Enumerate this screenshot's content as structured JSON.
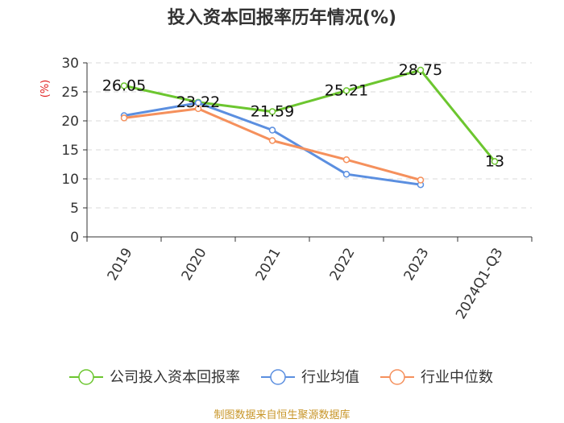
{
  "chart_data": {
    "type": "line",
    "title": "投入资本回报率历年情况(%)",
    "ylabel": "(%)",
    "categories": [
      "2019",
      "2020",
      "2021",
      "2022",
      "2023",
      "2024Q1-Q3"
    ],
    "ylim": [
      0,
      30
    ],
    "yticks": [
      0,
      5,
      10,
      15,
      20,
      25,
      30
    ],
    "grid": true,
    "legend_position": "bottom",
    "series": [
      {
        "name": "公司投入资本回报率",
        "color": "#6cc62f",
        "values": [
          26.05,
          23.22,
          21.59,
          25.21,
          28.75,
          13
        ],
        "labels": [
          "26.05",
          "23.22",
          "21.59",
          "25.21",
          "28.75",
          "13"
        ]
      },
      {
        "name": "行业均值",
        "color": "#5b8fe0",
        "values": [
          20.9,
          23.1,
          18.4,
          10.8,
          9.0,
          null
        ]
      },
      {
        "name": "行业中位数",
        "color": "#f5905c",
        "values": [
          20.5,
          22.1,
          16.6,
          13.3,
          9.8,
          null
        ]
      }
    ],
    "source": "制图数据来自恒生聚源数据库"
  }
}
